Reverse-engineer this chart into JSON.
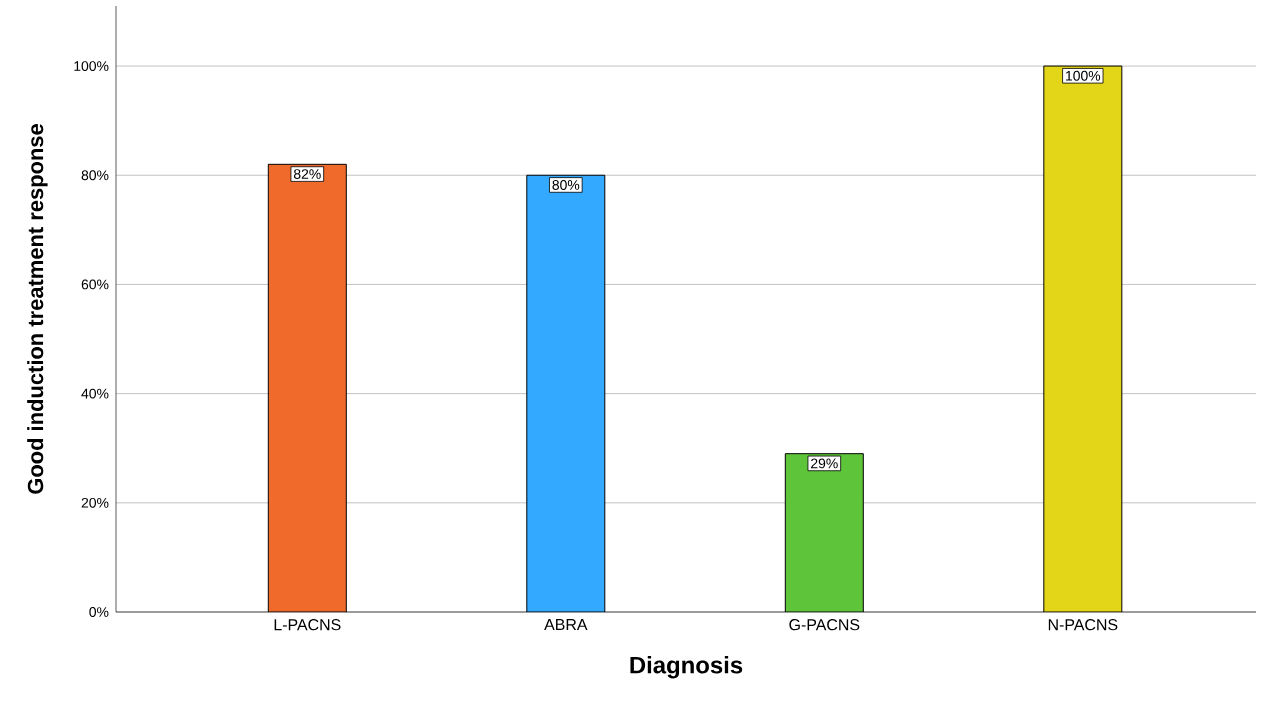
{
  "chart_data": {
    "type": "bar",
    "xlabel": "Diagnosis",
    "ylabel": "Good induction treatment response",
    "categories": [
      "L-PACNS",
      "ABRA",
      "G-PACNS",
      "N-PACNS"
    ],
    "values": [
      82,
      80,
      29,
      100
    ],
    "colors": [
      "#f06a2b",
      "#33aaff",
      "#5ec43a",
      "#e3d517"
    ],
    "value_labels": [
      "82%",
      "80%",
      "29%",
      "100%"
    ],
    "ylim": [
      0,
      111
    ],
    "yticks": [
      {
        "value": 0,
        "label": "0%"
      },
      {
        "value": 20,
        "label": "20%"
      },
      {
        "value": 40,
        "label": "40%"
      },
      {
        "value": 60,
        "label": "60%"
      },
      {
        "value": 80,
        "label": "80%"
      },
      {
        "value": 100,
        "label": "100%"
      }
    ],
    "grid": "y"
  }
}
